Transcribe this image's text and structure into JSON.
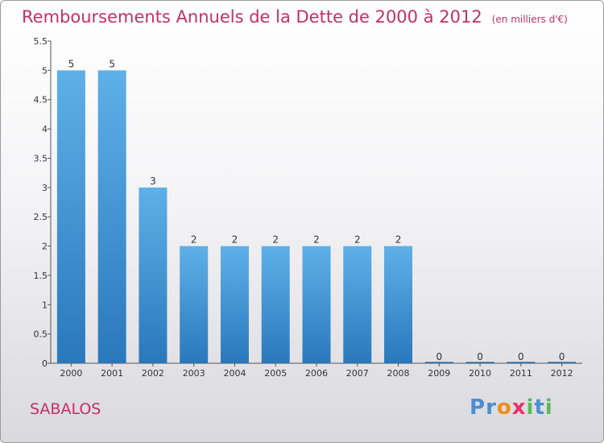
{
  "title": "Remboursements Annuels de la Dette de 2000 à 2012",
  "subtitle": "(en milliers d'€)",
  "commune": "SABALOS",
  "logo": {
    "text": "Proxiti",
    "letters": [
      {
        "ch": "P",
        "color": "#4a8fd0"
      },
      {
        "ch": "r",
        "color": "#4a8fd0"
      },
      {
        "ch": "o",
        "color": "#f08c1c"
      },
      {
        "ch": "x",
        "color": "#e8336a"
      },
      {
        "ch": "i",
        "color": "#5cb85c"
      },
      {
        "ch": "t",
        "color": "#4a8fd0"
      },
      {
        "ch": "i",
        "color": "#5cb85c"
      }
    ]
  },
  "colors": {
    "bar_top": "#5eb0e8",
    "bar_bottom": "#2a78bc",
    "title": "#c0306a"
  },
  "chart_data": {
    "type": "bar",
    "title": "Remboursements Annuels de la Dette de 2000 à 2012",
    "subtitle": "(en milliers d'€)",
    "categories": [
      "2000",
      "2001",
      "2002",
      "2003",
      "2004",
      "2005",
      "2006",
      "2007",
      "2008",
      "2009",
      "2010",
      "2011",
      "2012"
    ],
    "values": [
      5,
      5,
      3,
      2,
      2,
      2,
      2,
      2,
      2,
      0,
      0,
      0,
      0
    ],
    "data_labels": [
      "5",
      "5",
      "3",
      "2",
      "2",
      "2",
      "2",
      "2",
      "2",
      "0",
      "0",
      "0",
      "0"
    ],
    "yticks": [
      "0",
      "0.5",
      "1",
      "1.5",
      "2",
      "2.5",
      "3",
      "3.5",
      "4",
      "4.5",
      "5",
      "5.5"
    ],
    "ylim": [
      0,
      5.5
    ],
    "grid": false,
    "legend": "none"
  }
}
